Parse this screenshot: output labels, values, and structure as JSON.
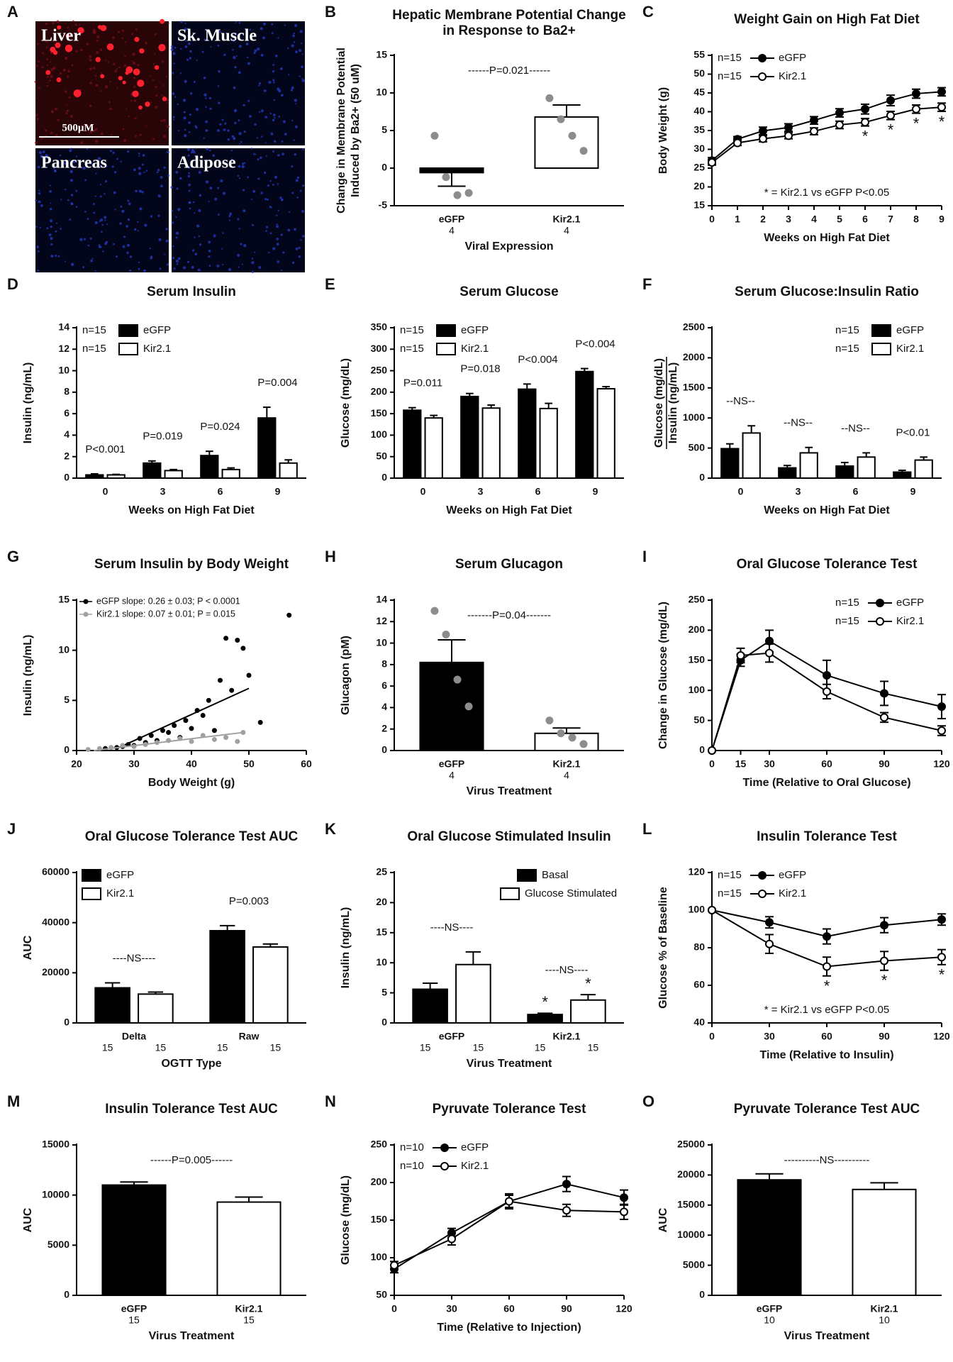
{
  "chart_data": [
    {
      "type": "image",
      "panel": "A",
      "labels": [
        "Liver",
        "Sk. Muscle",
        "Pancreas",
        "Adipose"
      ],
      "scale_bar": "500μM"
    },
    {
      "type": "bar",
      "panel": "B",
      "title": [
        "Hepatic Membrane Potential Change",
        "in Response to Ba2+"
      ],
      "ylabel": [
        "Change in Membrane Potential",
        "Induced by Ba2+ (50 uM)"
      ],
      "xlabel": "Viral Expression",
      "categories": [
        "eGFP",
        "Kir2.1"
      ],
      "n": [
        "4",
        "4"
      ],
      "values": [
        -0.6,
        6.8
      ],
      "errors": [
        1.8,
        1.6
      ],
      "colors": [
        "#000000",
        "#ffffff"
      ],
      "points": [
        [
          4.3,
          -1.2,
          -3.6,
          -3.3
        ],
        [
          9.3,
          6.5,
          4.3,
          2.3
        ]
      ],
      "ylim": [
        -5,
        15
      ],
      "yticks": [
        -5,
        0,
        5,
        10,
        15
      ],
      "comparison": "------P=0.021------"
    },
    {
      "type": "line",
      "panel": "C",
      "title": "Weight Gain on High Fat Diet",
      "ylabel": "Body Weight  (g)",
      "xlabel": "Weeks on High Fat Diet",
      "x": [
        0,
        1,
        2,
        3,
        4,
        5,
        6,
        7,
        8,
        9
      ],
      "xlim": [
        0,
        9
      ],
      "xticks": [
        0,
        1,
        2,
        3,
        4,
        5,
        6,
        7,
        8,
        9
      ],
      "ylim": [
        15,
        55
      ],
      "yticks": [
        15,
        20,
        25,
        30,
        35,
        40,
        45,
        50,
        55
      ],
      "legend": "upper left",
      "series": [
        {
          "name": "eGFP",
          "n": "n=15",
          "color": "#000000",
          "marker_fill": "#000000",
          "values": [
            27,
            32.7,
            34.9,
            35.8,
            37.7,
            39.7,
            40.7,
            43.0,
            44.8,
            45.3
          ],
          "errors": [
            0.8,
            0.7,
            1.0,
            1.0,
            1.0,
            1.1,
            1.3,
            1.4,
            1.2,
            1.1
          ]
        },
        {
          "name": "Kir2.1",
          "n": "n=15",
          "color": "#000000",
          "marker_fill": "#ffffff",
          "values": [
            26.5,
            31.7,
            32.8,
            33.6,
            34.8,
            36.5,
            37.2,
            39.0,
            40.7,
            41.2
          ],
          "errors": [
            0.7,
            0.7,
            0.8,
            0.8,
            0.9,
            1.0,
            1.0,
            1.1,
            1.1,
            1.1
          ],
          "stars": [
            null,
            null,
            null,
            null,
            null,
            null,
            "*",
            "*",
            "*",
            "*"
          ]
        }
      ],
      "note": "* = Kir2.1 vs eGFP P<0.05"
    },
    {
      "type": "bar",
      "panel": "D",
      "title": "Serum Insulin",
      "ylabel": "Insulin (ng/mL)",
      "xlabel": "Weeks on High Fat Diet",
      "categories": [
        "0",
        "3",
        "6",
        "9"
      ],
      "ylim": [
        0,
        14
      ],
      "yticks": [
        0,
        2,
        4,
        6,
        8,
        10,
        12,
        14
      ],
      "legend": "upper left",
      "series": [
        {
          "name": "eGFP",
          "n": "n=15",
          "color": "#000000",
          "values": [
            0.3,
            1.4,
            2.1,
            5.6
          ],
          "errors": [
            0.1,
            0.2,
            0.4,
            1.0
          ]
        },
        {
          "name": "Kir2.1",
          "n": "n=15",
          "color": "#ffffff",
          "values": [
            0.3,
            0.7,
            0.8,
            1.4
          ],
          "errors": [
            0.05,
            0.1,
            0.15,
            0.3
          ]
        }
      ],
      "group_labels": [
        "P<0.001",
        "P=0.019",
        "P=0.024",
        "P=0.004"
      ]
    },
    {
      "type": "bar",
      "panel": "E",
      "title": "Serum Glucose",
      "ylabel": "Glucose (mg/dL)",
      "xlabel": "Weeks on High Fat Diet",
      "categories": [
        "0",
        "3",
        "6",
        "9"
      ],
      "ylim": [
        0,
        350
      ],
      "yticks": [
        0,
        50,
        100,
        150,
        200,
        250,
        300,
        350
      ],
      "legend": "upper left",
      "series": [
        {
          "name": "eGFP",
          "n": "n=15",
          "color": "#000000",
          "values": [
            158,
            190,
            207,
            248
          ],
          "errors": [
            6,
            7,
            12,
            7
          ]
        },
        {
          "name": "Kir2.1",
          "n": "n=15",
          "color": "#ffffff",
          "values": [
            140,
            163,
            162,
            208
          ],
          "errors": [
            6,
            7,
            12,
            5
          ]
        }
      ],
      "group_labels": [
        "P=0.011",
        "P=0.018",
        "P<0.004",
        "P<0.004"
      ]
    },
    {
      "type": "bar",
      "panel": "F",
      "title": "Serum Glucose:Insulin Ratio",
      "ylabel": [
        "Glucose (mg/dL)",
        "Insulin (ng/mL)"
      ],
      "ylabel_fraction": true,
      "xlabel": "Weeks on High Fat Diet",
      "categories": [
        "0",
        "3",
        "6",
        "9"
      ],
      "ylim": [
        0,
        2500
      ],
      "yticks": [
        0,
        500,
        1000,
        1500,
        2000,
        2500
      ],
      "legend": "upper right",
      "series": [
        {
          "name": "eGFP",
          "n": "n=15",
          "color": "#000000",
          "values": [
            490,
            170,
            200,
            100
          ],
          "errors": [
            80,
            40,
            60,
            30
          ]
        },
        {
          "name": "Kir2.1",
          "n": "n=15",
          "color": "#ffffff",
          "values": [
            750,
            420,
            350,
            300
          ],
          "errors": [
            120,
            90,
            70,
            50
          ]
        }
      ],
      "group_labels": [
        "--NS--",
        "--NS--",
        "--NS--",
        "P<0.01"
      ]
    },
    {
      "type": "scatter",
      "panel": "G",
      "title": "Serum Insulin by Body Weight",
      "ylabel": "Insulin (ng/mL)",
      "xlabel": "Body Weight (g)",
      "xlim": [
        20,
        60
      ],
      "xticks": [
        20,
        30,
        40,
        50,
        60
      ],
      "ylim": [
        0,
        15
      ],
      "yticks": [
        0,
        5,
        10,
        15
      ],
      "legend": "upper left",
      "series": [
        {
          "name": "eGFP slope: 0.26 ± 0.03; P < 0.0001",
          "color": "#000000",
          "x": [
            25,
            27,
            28,
            29,
            30,
            31,
            32,
            33,
            34,
            35,
            36,
            37,
            38,
            39,
            40,
            41,
            42,
            43,
            44,
            45,
            46,
            47,
            48,
            49,
            50,
            52,
            57
          ],
          "y": [
            0.2,
            0.3,
            0.4,
            0.6,
            0.5,
            1.2,
            0.8,
            1.5,
            1.0,
            2.0,
            1.8,
            2.5,
            1.3,
            3.0,
            2.2,
            4.0,
            3.5,
            5.0,
            2.0,
            7.0,
            11.2,
            6.0,
            11.0,
            10.2,
            7.5,
            2.8,
            13.5
          ],
          "fit_x": [
            27,
            50
          ],
          "fit_y": [
            0.2,
            6.2
          ]
        },
        {
          "name": "Kir2.1 slope: 0.07 ± 0.01; P = 0.015",
          "color": "#a0a0a0",
          "x": [
            22,
            24,
            26,
            28,
            30,
            32,
            34,
            36,
            38,
            40,
            42,
            44,
            46,
            48,
            49
          ],
          "y": [
            0.1,
            0.2,
            0.3,
            0.5,
            0.4,
            0.6,
            0.8,
            1.0,
            1.2,
            0.9,
            1.5,
            1.1,
            1.3,
            0.9,
            1.8
          ],
          "fit_x": [
            23,
            49
          ],
          "fit_y": [
            0,
            1.8
          ]
        }
      ]
    },
    {
      "type": "bar",
      "panel": "H",
      "title": "Serum Glucagon",
      "ylabel": "Glucagon (pM)",
      "xlabel": "Virus Treatment",
      "categories": [
        "eGFP",
        "Kir2.1"
      ],
      "n": [
        "4",
        "4"
      ],
      "values": [
        8.2,
        1.6
      ],
      "errors": [
        2.1,
        0.5
      ],
      "colors": [
        "#000000",
        "#ffffff"
      ],
      "points": [
        [
          13,
          10.8,
          6.6,
          4.1
        ],
        [
          2.8,
          1.6,
          1.2,
          0.6
        ]
      ],
      "ylim": [
        0,
        14
      ],
      "yticks": [
        0,
        2,
        4,
        6,
        8,
        10,
        12,
        14
      ],
      "comparison": "-------P=0.04-------"
    },
    {
      "type": "line",
      "panel": "I",
      "title": "Oral Glucose Tolerance Test",
      "ylabel": "Change in Glucose (mg/dL)",
      "xlabel": "Time (Relative to Oral Glucose)",
      "x": [
        0,
        15,
        30,
        60,
        90,
        120
      ],
      "xlim": [
        0,
        120
      ],
      "xticks": [
        0,
        15,
        30,
        60,
        90,
        120
      ],
      "ylim": [
        0,
        250
      ],
      "yticks": [
        0,
        50,
        100,
        150,
        200,
        250
      ],
      "legend": "upper right",
      "series": [
        {
          "name": "eGFP",
          "n": "n=15",
          "color": "#000000",
          "marker_fill": "#000000",
          "values": [
            0,
            150,
            182,
            125,
            95,
            73
          ],
          "errors": [
            0,
            10,
            18,
            25,
            20,
            20
          ]
        },
        {
          "name": "Kir2.1",
          "n": "n=15",
          "color": "#000000",
          "marker_fill": "#ffffff",
          "values": [
            0,
            158,
            162,
            98,
            55,
            33
          ],
          "errors": [
            0,
            12,
            15,
            12,
            8,
            8
          ]
        }
      ]
    },
    {
      "type": "bar",
      "panel": "J",
      "title": "Oral Glucose Tolerance Test AUC",
      "ylabel": "AUC",
      "xlabel": "OGTT Type",
      "categories": [
        "Delta",
        "Raw"
      ],
      "ylim": [
        0,
        60000
      ],
      "yticks": [
        0,
        20000,
        40000,
        60000
      ],
      "legend": "upper left",
      "series": [
        {
          "name": "eGFP",
          "color": "#000000",
          "values": [
            14000,
            36800
          ],
          "errors": [
            2000,
            2000
          ],
          "counts": [
            "15",
            "15"
          ]
        },
        {
          "name": "Kir2.1",
          "color": "#ffffff",
          "values": [
            11500,
            30300
          ],
          "errors": [
            800,
            1200
          ],
          "counts": [
            "15",
            "15"
          ]
        }
      ],
      "group_labels": [
        "----NS----",
        "P=0.003"
      ]
    },
    {
      "type": "bar",
      "panel": "K",
      "title": "Oral Glucose Stimulated Insulin",
      "ylabel": "Insulin (ng/mL)",
      "xlabel": "Virus Treatment",
      "categories": [
        "eGFP",
        "Kir2.1"
      ],
      "ylim": [
        0,
        25
      ],
      "yticks": [
        0,
        5,
        10,
        15,
        20,
        25
      ],
      "legend": "upper right",
      "series": [
        {
          "name": "Basal",
          "color": "#000000",
          "values": [
            5.6,
            1.4
          ],
          "errors": [
            1.0,
            0.2
          ],
          "counts": [
            "15",
            "15"
          ],
          "stars": [
            null,
            "*"
          ]
        },
        {
          "name": "Glucose Stimulated",
          "color": "#ffffff",
          "values": [
            9.7,
            3.8
          ],
          "errors": [
            2.1,
            0.9
          ],
          "counts": [
            "15",
            "15"
          ],
          "stars": [
            null,
            "*"
          ]
        }
      ],
      "group_labels": [
        "----NS----",
        "----NS----"
      ]
    },
    {
      "type": "line",
      "panel": "L",
      "title": "Insulin Tolerance Test",
      "ylabel": "Glucose % of Baseline",
      "xlabel": "Time (Relative to Insulin)",
      "x": [
        0,
        30,
        60,
        90,
        120
      ],
      "xlim": [
        0,
        120
      ],
      "xticks": [
        0,
        30,
        60,
        90,
        120
      ],
      "ylim": [
        40,
        120
      ],
      "yticks": [
        40,
        60,
        80,
        100,
        120
      ],
      "legend": "upper left",
      "series": [
        {
          "name": "eGFP",
          "n": "n=15",
          "color": "#000000",
          "marker_fill": "#000000",
          "values": [
            100,
            93.5,
            86,
            92,
            95
          ],
          "errors": [
            0,
            3,
            4,
            4,
            3
          ]
        },
        {
          "name": "Kir2.1",
          "n": "n=15",
          "color": "#000000",
          "marker_fill": "#ffffff",
          "values": [
            100,
            82,
            70,
            73,
            75
          ],
          "errors": [
            0,
            5,
            5,
            5,
            4
          ],
          "stars": [
            null,
            null,
            "*",
            "*",
            "*"
          ]
        }
      ],
      "note": "* = Kir2.1 vs eGFP P<0.05"
    },
    {
      "type": "bar",
      "panel": "M",
      "title": "Insulin Tolerance Test AUC",
      "ylabel": "AUC",
      "xlabel": "Virus Treatment",
      "categories": [
        "eGFP",
        "Kir2.1"
      ],
      "n": [
        "15",
        "15"
      ],
      "values": [
        11000,
        9300
      ],
      "errors": [
        300,
        500
      ],
      "colors": [
        "#000000",
        "#ffffff"
      ],
      "ylim": [
        0,
        15000
      ],
      "yticks": [
        0,
        5000,
        10000,
        15000
      ],
      "comparison": "------P=0.005------"
    },
    {
      "type": "line",
      "panel": "N",
      "title": "Pyruvate Tolerance Test",
      "ylabel": "Glucose (mg/dL)",
      "xlabel": "Time (Relative to Injection)",
      "x": [
        0,
        30,
        60,
        90,
        120
      ],
      "xlim": [
        0,
        120
      ],
      "xticks": [
        0,
        30,
        60,
        90,
        120
      ],
      "ylim": [
        50,
        250
      ],
      "yticks": [
        50,
        100,
        150,
        200,
        250
      ],
      "legend": "upper left",
      "series": [
        {
          "name": "eGFP",
          "n": "n=10",
          "color": "#000000",
          "marker_fill": "#000000",
          "values": [
            85,
            133,
            175,
            198,
            180
          ],
          "errors": [
            5,
            6,
            8,
            10,
            10
          ]
        },
        {
          "name": "Kir2.1",
          "n": "n=10",
          "color": "#000000",
          "marker_fill": "#ffffff",
          "values": [
            90,
            125,
            175,
            163,
            161
          ],
          "errors": [
            5,
            8,
            10,
            8,
            10
          ]
        }
      ]
    },
    {
      "type": "bar",
      "panel": "O",
      "title": "Pyruvate Tolerance Test AUC",
      "ylabel": "AUC",
      "xlabel": "Virus Treatment",
      "categories": [
        "eGFP",
        "Kir2.1"
      ],
      "n": [
        "10",
        "10"
      ],
      "values": [
        19200,
        17600
      ],
      "errors": [
        1000,
        1100
      ],
      "colors": [
        "#000000",
        "#ffffff"
      ],
      "ylim": [
        0,
        25000
      ],
      "yticks": [
        0,
        5000,
        10000,
        15000,
        20000,
        25000
      ],
      "comparison": "----------NS----------"
    }
  ]
}
